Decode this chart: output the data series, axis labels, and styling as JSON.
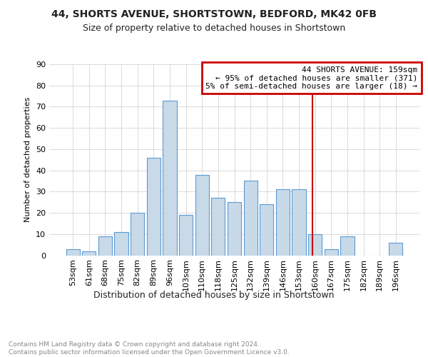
{
  "title1": "44, SHORTS AVENUE, SHORTSTOWN, BEDFORD, MK42 0FB",
  "title2": "Size of property relative to detached houses in Shortstown",
  "xlabel": "Distribution of detached houses by size in Shortstown",
  "ylabel": "Number of detached properties",
  "categories": [
    "53sqm",
    "61sqm",
    "68sqm",
    "75sqm",
    "82sqm",
    "89sqm",
    "96sqm",
    "103sqm",
    "110sqm",
    "118sqm",
    "125sqm",
    "132sqm",
    "139sqm",
    "146sqm",
    "153sqm",
    "160sqm",
    "167sqm",
    "175sqm",
    "182sqm",
    "189sqm",
    "196sqm"
  ],
  "values": [
    3,
    2,
    9,
    11,
    20,
    46,
    73,
    19,
    38,
    27,
    25,
    35,
    24,
    31,
    31,
    10,
    3,
    9,
    0,
    0,
    6
  ],
  "bar_color": "#c8d9e8",
  "bar_edge_color": "#5b9bd5",
  "annotation_box_text": "44 SHORTS AVENUE: 159sqm\n← 95% of detached houses are smaller (371)\n5% of semi-detached houses are larger (18) →",
  "annotation_box_color": "#cc0000",
  "vline_index": 15,
  "ylim": [
    0,
    90
  ],
  "yticks": [
    0,
    10,
    20,
    30,
    40,
    50,
    60,
    70,
    80,
    90
  ],
  "footer_text": "Contains HM Land Registry data © Crown copyright and database right 2024.\nContains public sector information licensed under the Open Government Licence v3.0.",
  "background_color": "#ffffff",
  "grid_color": "#cccccc",
  "title1_fontsize": 10,
  "title2_fontsize": 9,
  "xlabel_fontsize": 9,
  "ylabel_fontsize": 8,
  "tick_fontsize": 8,
  "annot_fontsize": 8,
  "footer_fontsize": 6.5
}
